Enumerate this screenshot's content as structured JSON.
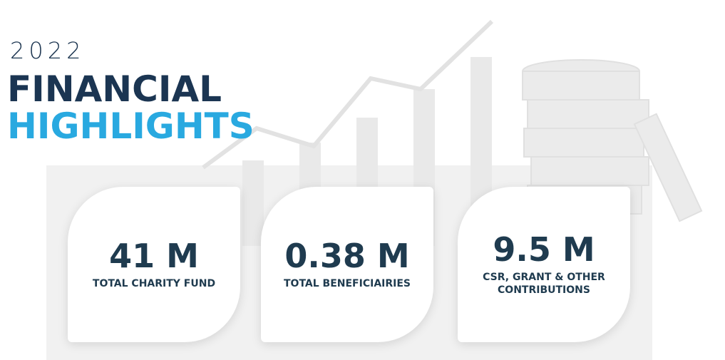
{
  "header": {
    "year": "2022",
    "line1": "FINANCIAL",
    "line2": "HIGHLIGHTS"
  },
  "cards": [
    {
      "value": "41 M",
      "label": "TOTAL CHARITY FUND"
    },
    {
      "value": "0.38 M",
      "label": "TOTAL BENEFICIAIRIES"
    },
    {
      "value": "9.5 M",
      "label": "CSR, GRANT & OTHER CONTRIBUTIONS"
    }
  ]
}
